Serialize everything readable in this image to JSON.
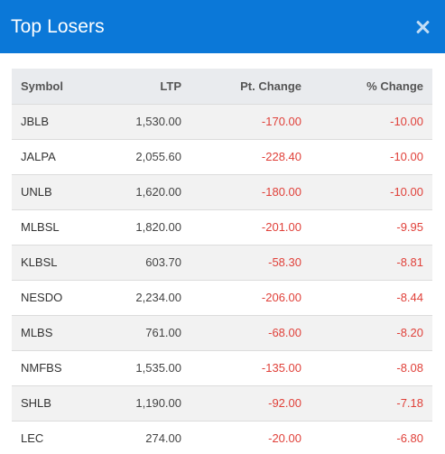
{
  "modal": {
    "title": "Top Losers",
    "close_icon": "close-icon"
  },
  "table": {
    "headers": {
      "symbol": "Symbol",
      "ltp": "LTP",
      "pt_change": "Pt. Change",
      "pct_change": "% Change"
    },
    "rows": [
      {
        "symbol": "JBLB",
        "ltp": "1,530.00",
        "pt_change": "-170.00",
        "pct_change": "-10.00"
      },
      {
        "symbol": "JALPA",
        "ltp": "2,055.60",
        "pt_change": "-228.40",
        "pct_change": "-10.00"
      },
      {
        "symbol": "UNLB",
        "ltp": "1,620.00",
        "pt_change": "-180.00",
        "pct_change": "-10.00"
      },
      {
        "symbol": "MLBSL",
        "ltp": "1,820.00",
        "pt_change": "-201.00",
        "pct_change": "-9.95"
      },
      {
        "symbol": "KLBSL",
        "ltp": "603.70",
        "pt_change": "-58.30",
        "pct_change": "-8.81"
      },
      {
        "symbol": "NESDO",
        "ltp": "2,234.00",
        "pt_change": "-206.00",
        "pct_change": "-8.44"
      },
      {
        "symbol": "MLBS",
        "ltp": "761.00",
        "pt_change": "-68.00",
        "pct_change": "-8.20"
      },
      {
        "symbol": "NMFBS",
        "ltp": "1,535.00",
        "pt_change": "-135.00",
        "pct_change": "-8.08"
      },
      {
        "symbol": "SHLB",
        "ltp": "1,190.00",
        "pt_change": "-92.00",
        "pct_change": "-7.18"
      },
      {
        "symbol": "LEC",
        "ltp": "274.00",
        "pt_change": "-20.00",
        "pct_change": "-6.80"
      }
    ]
  },
  "colors": {
    "header_bg": "#0b78d8",
    "negative": "#e0413a",
    "table_head_bg": "#e9ebee",
    "row_stripe": "#f2f2f2"
  }
}
